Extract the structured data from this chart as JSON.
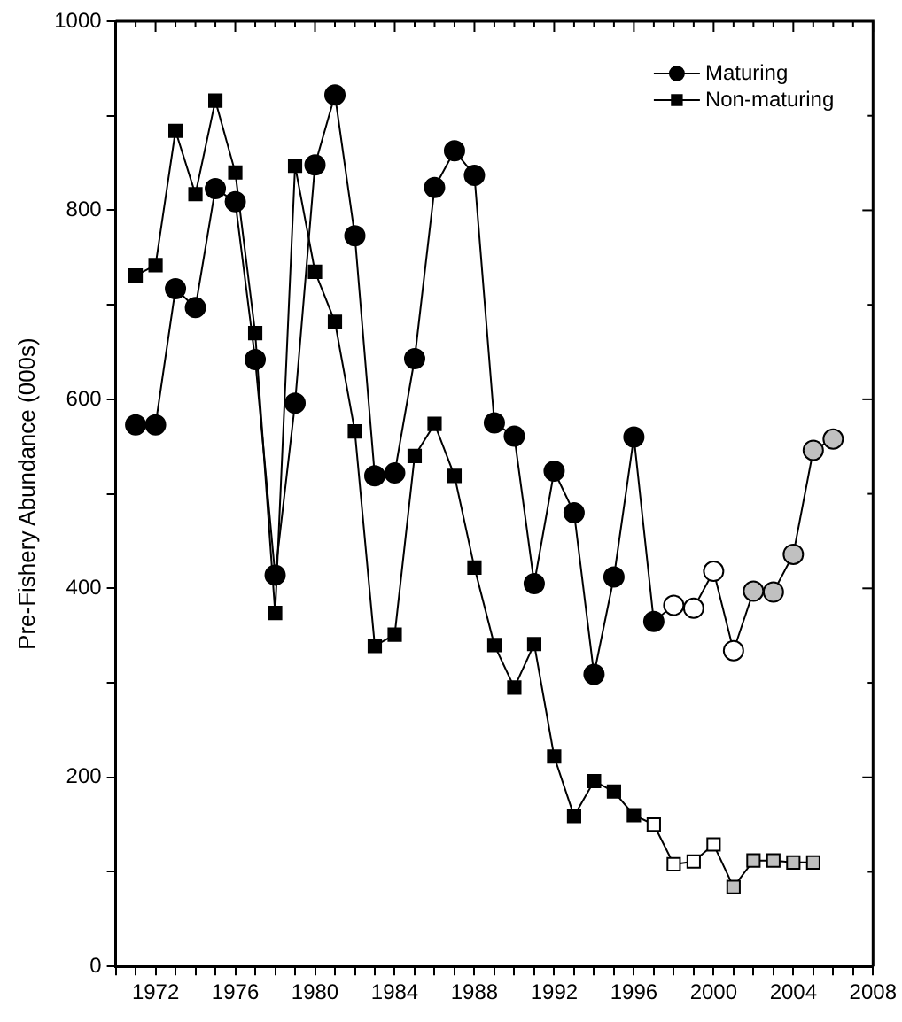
{
  "chart_data": {
    "type": "line",
    "ylabel": "Pre-Fishery Abundance (000s)",
    "x": [
      1971,
      1972,
      1973,
      1974,
      1975,
      1976,
      1977,
      1978,
      1979,
      1980,
      1981,
      1982,
      1983,
      1984,
      1985,
      1986,
      1987,
      1988,
      1989,
      1990,
      1991,
      1992,
      1993,
      1994,
      1995,
      1996,
      1997,
      1998,
      1999,
      2000,
      2001,
      2002,
      2003,
      2004,
      2005,
      2006
    ],
    "series": [
      {
        "name": "Maturing",
        "color": "#000000",
        "marker": "circle",
        "values": [
          573,
          573,
          717,
          697,
          823,
          809,
          642,
          414,
          596,
          848,
          922,
          773,
          519,
          522,
          643,
          824,
          863,
          837,
          575,
          561,
          405,
          524,
          480,
          309,
          412,
          560,
          365,
          382,
          379,
          418,
          334,
          397,
          396,
          436,
          546,
          558
        ],
        "colors": [
          "#000000",
          "#000000",
          "#000000",
          "#000000",
          "#000000",
          "#000000",
          "#000000",
          "#000000",
          "#000000",
          "#000000",
          "#000000",
          "#000000",
          "#000000",
          "#000000",
          "#000000",
          "#000000",
          "#000000",
          "#000000",
          "#000000",
          "#000000",
          "#000000",
          "#000000",
          "#000000",
          "#000000",
          "#000000",
          "#000000",
          "#000000",
          "#ffffff",
          "#ffffff",
          "#ffffff",
          "#ffffff",
          "#c0c0c0",
          "#c0c0c0",
          "#c0c0c0",
          "#c0c0c0",
          "#c0c0c0"
        ]
      },
      {
        "name": "Non-maturing",
        "color": "#000000",
        "marker": "square",
        "values": [
          731,
          742,
          884,
          817,
          916,
          840,
          670,
          374,
          847,
          735,
          682,
          566,
          339,
          351,
          540,
          574,
          519,
          422,
          340,
          295,
          341,
          222,
          159,
          196,
          185,
          160,
          150,
          108,
          111,
          129,
          84,
          112,
          112,
          110,
          110,
          null
        ],
        "colors": [
          "#000000",
          "#000000",
          "#000000",
          "#000000",
          "#000000",
          "#000000",
          "#000000",
          "#000000",
          "#000000",
          "#000000",
          "#000000",
          "#000000",
          "#000000",
          "#000000",
          "#000000",
          "#000000",
          "#000000",
          "#000000",
          "#000000",
          "#000000",
          "#000000",
          "#000000",
          "#000000",
          "#000000",
          "#000000",
          "#000000",
          "#ffffff",
          "#ffffff",
          "#ffffff",
          "#ffffff",
          "#c0c0c0",
          "#c0c0c0",
          "#c0c0c0",
          "#c0c0c0",
          "#c0c0c0",
          null
        ]
      }
    ],
    "xlim": [
      1970,
      2008
    ],
    "xticks": [
      {
        "value": 1970,
        "label": null
      },
      {
        "value": 1971,
        "label": null
      },
      1972,
      {
        "value": 1973,
        "label": null
      },
      {
        "value": 1974,
        "label": null
      },
      {
        "value": 1975,
        "label": null
      },
      1976,
      {
        "value": 1977,
        "label": null
      },
      {
        "value": 1978,
        "label": null
      },
      {
        "value": 1979,
        "label": null
      },
      1980,
      {
        "value": 1981,
        "label": null
      },
      {
        "value": 1982,
        "label": null
      },
      {
        "value": 1983,
        "label": null
      },
      1984,
      {
        "value": 1985,
        "label": null
      },
      {
        "value": 1986,
        "label": null
      },
      {
        "value": 1987,
        "label": null
      },
      1988,
      {
        "value": 1989,
        "label": null
      },
      {
        "value": 1990,
        "label": null
      },
      {
        "value": 1991,
        "label": null
      },
      1992,
      {
        "value": 1993,
        "label": null
      },
      {
        "value": 1994,
        "label": null
      },
      {
        "value": 1995,
        "label": null
      },
      1996,
      {
        "value": 1997,
        "label": null
      },
      {
        "value": 1998,
        "label": null
      },
      {
        "value": 1999,
        "label": null
      },
      2000,
      {
        "value": 2001,
        "label": null
      },
      {
        "value": 2002,
        "label": null
      },
      {
        "value": 2003,
        "label": null
      },
      2004,
      {
        "value": 2005,
        "label": null
      },
      {
        "value": 2006,
        "label": null
      },
      {
        "value": 2007,
        "label": null
      },
      2008
    ],
    "ylim": [
      0,
      1000
    ],
    "yticks": [
      0,
      {
        "value": 100,
        "label": null
      },
      200,
      {
        "value": 300,
        "label": null
      },
      400,
      {
        "value": 500,
        "label": null
      },
      600,
      {
        "value": 700,
        "label": null
      },
      800,
      {
        "value": 900,
        "label": null
      },
      1000
    ],
    "grid": false,
    "legend": "top right",
    "line_style": "solid"
  }
}
